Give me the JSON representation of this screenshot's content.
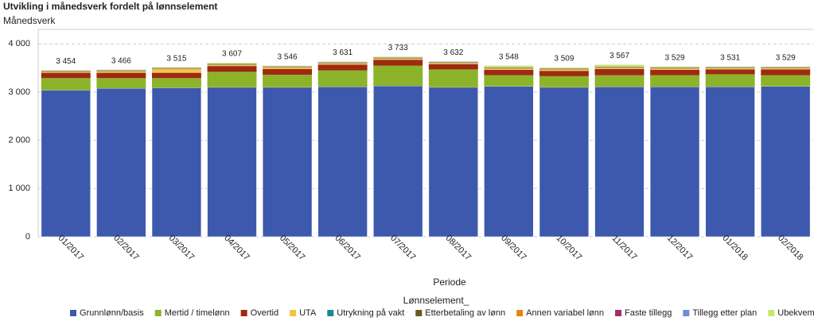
{
  "chart_data": {
    "type": "stacked-bar",
    "title": "Utvikling i månedsverk fordelt på lønnselement",
    "y_label": "Månedsverk",
    "x_label": "Periode",
    "legend_title": "Lønnselement_",
    "categories": [
      "01/2017",
      "02/2017",
      "03/2017",
      "04/2017",
      "05/2017",
      "06/2017",
      "07/2017",
      "08/2017",
      "09/2017",
      "10/2017",
      "11/2017",
      "12/2017",
      "01/2018",
      "02/2018"
    ],
    "series": [
      {
        "name": "Grunnlønn/basis",
        "color": "#3d59ae",
        "values": [
          3040,
          3080,
          3090,
          3100,
          3100,
          3110,
          3130,
          3100,
          3120,
          3100,
          3110,
          3110,
          3110,
          3120
        ]
      },
      {
        "name": "Mertid / timelønn",
        "color": "#8db32a",
        "values": [
          250,
          210,
          200,
          320,
          260,
          340,
          420,
          370,
          230,
          230,
          240,
          240,
          260,
          230
        ]
      },
      {
        "name": "Overtid",
        "color": "#9e2a12",
        "values": [
          110,
          110,
          110,
          120,
          120,
          120,
          120,
          110,
          110,
          110,
          130,
          110,
          100,
          120
        ]
      },
      {
        "name": "UTA",
        "color": "#f5c342",
        "values": [
          20,
          30,
          80,
          25,
          30,
          25,
          25,
          25,
          30,
          30,
          25,
          30,
          25,
          25
        ]
      },
      {
        "name": "Utrykning på vakt",
        "color": "#1a8a9a",
        "values": [
          5,
          5,
          5,
          5,
          5,
          5,
          5,
          5,
          5,
          5,
          5,
          5,
          5,
          5
        ]
      },
      {
        "name": "Etterbetaling av lønn",
        "color": "#6b5a1a",
        "values": [
          5,
          5,
          5,
          5,
          5,
          5,
          5,
          5,
          5,
          5,
          5,
          5,
          5,
          5
        ]
      },
      {
        "name": "Annen variabel lønn",
        "color": "#e8850c",
        "values": [
          5,
          5,
          5,
          5,
          5,
          5,
          5,
          5,
          5,
          5,
          5,
          5,
          5,
          5
        ]
      },
      {
        "name": "Faste tillegg",
        "color": "#a0306a",
        "values": [
          5,
          5,
          5,
          5,
          5,
          5,
          5,
          5,
          5,
          5,
          5,
          5,
          5,
          5
        ]
      },
      {
        "name": "Tillegg etter plan",
        "color": "#6a8ed8",
        "values": [
          5,
          5,
          5,
          5,
          5,
          5,
          5,
          5,
          5,
          5,
          5,
          5,
          5,
          5
        ]
      },
      {
        "name": "Ubekvem arbeidstid",
        "color": "#c8e86a",
        "values": [
          9,
          11,
          10,
          17,
          11,
          11,
          13,
          2,
          33,
          14,
          37,
          14,
          11,
          9
        ]
      }
    ],
    "totals": {
      "values": [
        3454,
        3466,
        3515,
        3607,
        3546,
        3631,
        3733,
        3632,
        3548,
        3509,
        3567,
        3529,
        3531,
        3529
      ],
      "value_labels": [
        "3 454",
        "3 466",
        "3 515",
        "3 607",
        "3 546",
        "3 631",
        "3 733",
        "3 632",
        "3 548",
        "3 509",
        "3 567",
        "3 529",
        "3 531",
        "3 529"
      ]
    },
    "ylim": [
      0,
      4300
    ],
    "yticks": [
      0,
      {
        "value": 1000,
        "label": "1 000"
      },
      {
        "value": 2000,
        "label": "2 000"
      },
      {
        "value": 3000,
        "label": "3 000"
      },
      {
        "value": 4000,
        "label": "4 000"
      }
    ],
    "grid": true
  }
}
